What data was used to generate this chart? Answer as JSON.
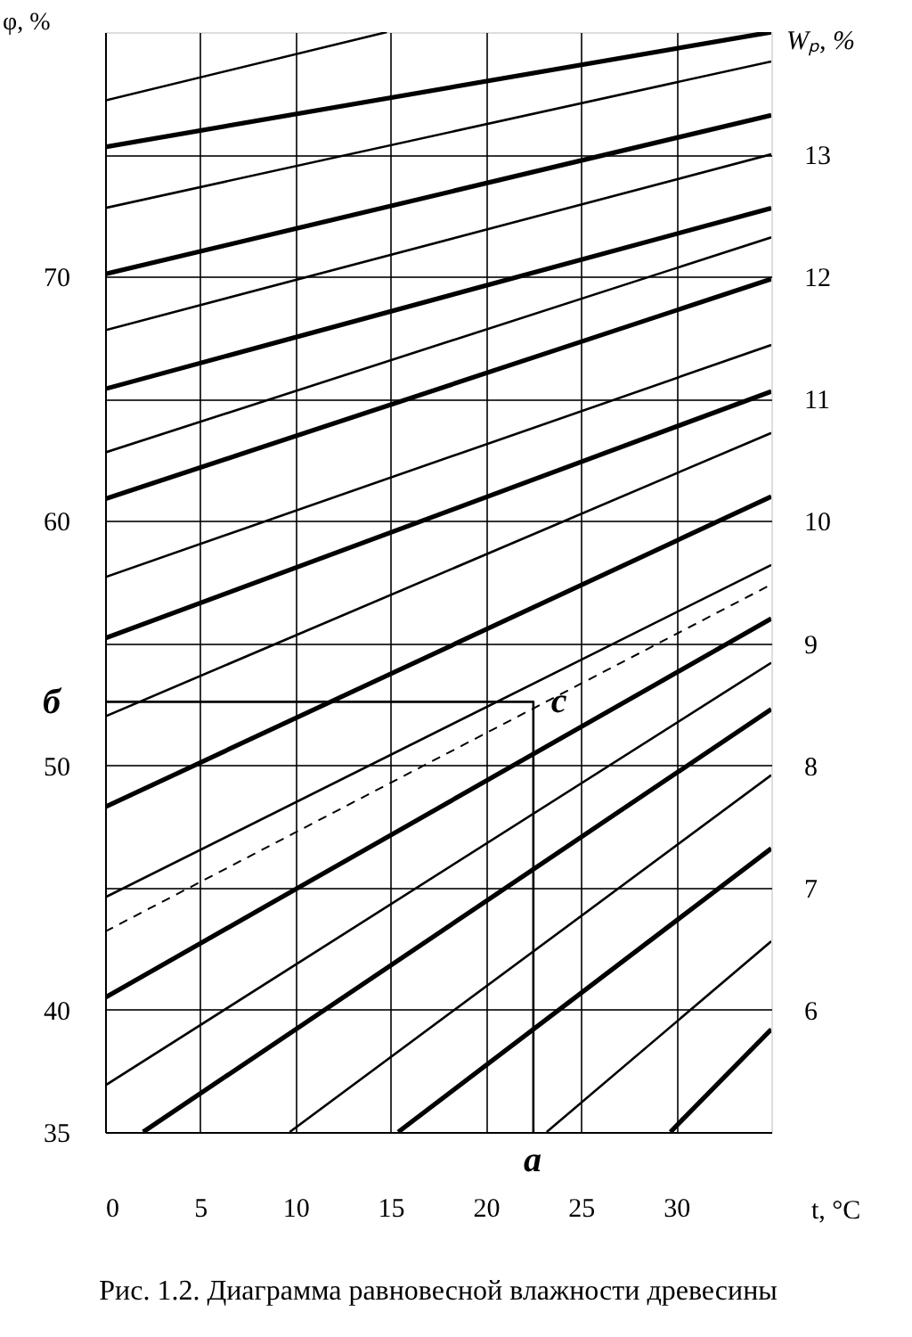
{
  "chart_data": {
    "type": "line",
    "title": "Рис. 1.2. Диаграмма равновесной влажности древесины",
    "xlabel": "t, °C",
    "ylabel": "φ, %",
    "y2label": "Wₚ, %",
    "xlim": [
      0,
      35
    ],
    "xticks": [
      0,
      5,
      10,
      15,
      20,
      25,
      30
    ],
    "ylim": [
      35,
      80
    ],
    "yticks": [
      35,
      40,
      {
        "value": 45,
        "label": null
      },
      50,
      {
        "value": 55,
        "label": null
      },
      60,
      {
        "value": 65,
        "label": null
      },
      70,
      {
        "value": 75,
        "label": null
      }
    ],
    "y2lim": [
      5,
      14
    ],
    "y2ticks": [
      6,
      7,
      8,
      9,
      10,
      11,
      12,
      13
    ],
    "grid": true,
    "legend": false,
    "line_style": "solid",
    "series": [
      {
        "color": "#000000",
        "x": [
          0,
          14.8
        ],
        "values": [
          77.2,
          80
        ]
      },
      {
        "color": "#000000",
        "x": [
          0,
          35
        ],
        "values": [
          75.3,
          80.0
        ]
      },
      {
        "color": "#000000",
        "x": [
          0,
          35
        ],
        "values": [
          72.8,
          78.8
        ]
      },
      {
        "color": "#000000",
        "x": [
          0,
          35
        ],
        "values": [
          70.1,
          76.6
        ]
      },
      {
        "color": "#000000",
        "x": [
          0,
          35
        ],
        "values": [
          67.8,
          75.0
        ]
      },
      {
        "color": "#000000",
        "x": [
          0,
          35
        ],
        "values": [
          65.4,
          72.8
        ]
      },
      {
        "color": "#000000",
        "x": [
          0,
          35
        ],
        "values": [
          62.8,
          71.6
        ]
      },
      {
        "color": "#000000",
        "x": [
          0,
          35
        ],
        "values": [
          60.9,
          69.9
        ]
      },
      {
        "color": "#000000",
        "x": [
          0,
          35
        ],
        "values": [
          57.7,
          67.2
        ]
      },
      {
        "color": "#000000",
        "x": [
          0,
          35
        ],
        "values": [
          55.2,
          65.3
        ]
      },
      {
        "color": "#000000",
        "x": [
          0,
          35
        ],
        "values": [
          52.0,
          63.6
        ]
      },
      {
        "color": "#000000",
        "x": [
          0,
          35
        ],
        "values": [
          48.3,
          61.0
        ]
      },
      {
        "color": "#000000",
        "x": [
          0,
          35
        ],
        "values": [
          44.6,
          58.2
        ]
      },
      {
        "color": "#000000",
        "x": [
          0,
          35
        ],
        "values": [
          40.5,
          56.0
        ]
      },
      {
        "color": "#000000",
        "x": [
          0,
          35
        ],
        "values": [
          36.9,
          54.2
        ]
      },
      {
        "color": "#000000",
        "x": [
          2.0,
          35
        ],
        "values": [
          35,
          52.3
        ]
      },
      {
        "color": "#000000",
        "x": [
          9.7,
          35
        ],
        "values": [
          35,
          49.6
        ]
      },
      {
        "color": "#000000",
        "x": [
          15.4,
          35
        ],
        "values": [
          35,
          46.6
        ]
      },
      {
        "color": "#000000",
        "x": [
          23.2,
          35
        ],
        "values": [
          35,
          42.8
        ]
      },
      {
        "color": "#000000",
        "x": [
          29.7,
          35
        ],
        "values": [
          35,
          39.2
        ]
      },
      {
        "color": "#000000",
        "x": [
          0,
          22.5,
          22.5
        ],
        "values": [
          52.6,
          52.6,
          35
        ]
      },
      {
        "color": "#000000",
        "x": [
          0,
          35
        ],
        "values": [
          43.2,
          57.4
        ],
        "line_style": "dashed"
      }
    ],
    "annotations": [
      "б",
      {
        "text": "c",
        "x": 22.5,
        "y": 52.6
      },
      "a"
    ]
  }
}
